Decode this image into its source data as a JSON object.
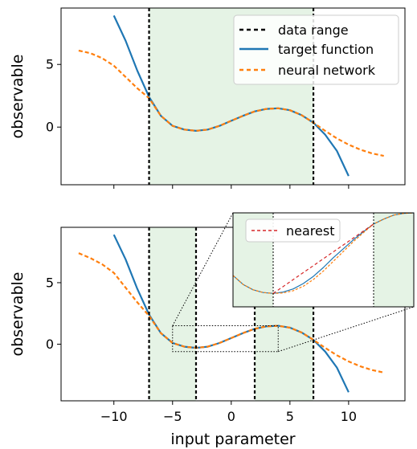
{
  "chart_data": [
    {
      "type": "line",
      "xlabel": "",
      "ylabel": "observable",
      "xlim": [
        -14.5,
        14.8
      ],
      "ylim": [
        -4.6,
        9.5
      ],
      "yticks": [
        0,
        5
      ],
      "shaded_x": [
        [
          -7,
          7
        ]
      ],
      "vlines_x": [
        -7,
        7
      ],
      "legend_position": "upper right",
      "legend": [
        {
          "label": "data range",
          "style": "dashed",
          "color": "#000000"
        },
        {
          "label": "target function",
          "style": "solid",
          "color": "#1f77b4"
        },
        {
          "label": "neural network",
          "style": "dashed",
          "color": "#ff7f0e"
        }
      ],
      "series": [
        {
          "name": "target function",
          "color": "#1f77b4",
          "x": [
            -10,
            -9,
            -8,
            -7,
            -6,
            -5,
            -4,
            -3,
            -2,
            -1,
            0,
            1,
            2,
            3,
            4,
            5,
            6,
            7,
            8,
            9,
            10
          ],
          "y": [
            8.9,
            6.9,
            4.5,
            2.4,
            0.9,
            0.1,
            -0.2,
            -0.3,
            -0.2,
            0.1,
            0.5,
            0.9,
            1.25,
            1.45,
            1.5,
            1.35,
            0.95,
            0.35,
            -0.6,
            -1.9,
            -3.9
          ]
        },
        {
          "name": "neural network",
          "color": "#ff7f0e",
          "x": [
            -13,
            -12,
            -11,
            -10,
            -9,
            -8,
            -7,
            -6,
            -5,
            -4,
            -3,
            -2,
            -1,
            0,
            1,
            2,
            3,
            4,
            5,
            6,
            7,
            8,
            9,
            10,
            11,
            12,
            13
          ],
          "y": [
            6.1,
            5.9,
            5.5,
            4.9,
            4.0,
            3.1,
            2.3,
            0.9,
            0.1,
            -0.2,
            -0.3,
            -0.2,
            0.1,
            0.5,
            0.9,
            1.25,
            1.45,
            1.5,
            1.35,
            0.95,
            0.35,
            -0.3,
            -0.9,
            -1.4,
            -1.8,
            -2.1,
            -2.3
          ]
        }
      ]
    },
    {
      "type": "line",
      "xlabel": "input parameter",
      "ylabel": "observable",
      "xlim": [
        -14.5,
        14.8
      ],
      "ylim": [
        -4.6,
        9.5
      ],
      "xticks": [
        -10,
        -5,
        0,
        5,
        10
      ],
      "yticks": [
        0,
        5
      ],
      "shaded_x": [
        [
          -7,
          -3
        ],
        [
          2,
          7
        ]
      ],
      "vlines_x": [
        -7,
        -3,
        2,
        7
      ],
      "zoom_box": {
        "x": [
          -5,
          4
        ],
        "y": [
          -0.6,
          1.5
        ]
      },
      "series": [
        {
          "name": "target function",
          "color": "#1f77b4",
          "x": [
            -10,
            -9,
            -8,
            -7,
            -6,
            -5,
            -4,
            -3,
            -2,
            -1,
            0,
            1,
            2,
            3,
            4,
            5,
            6,
            7,
            8,
            9,
            10
          ],
          "y": [
            8.9,
            6.9,
            4.5,
            2.4,
            0.9,
            0.1,
            -0.2,
            -0.3,
            -0.2,
            0.1,
            0.5,
            0.9,
            1.25,
            1.45,
            1.5,
            1.35,
            0.95,
            0.35,
            -0.6,
            -1.9,
            -3.9
          ]
        },
        {
          "name": "neural network",
          "color": "#ff7f0e",
          "x": [
            -13,
            -12,
            -11,
            -10,
            -9,
            -8,
            -7,
            -6,
            -5,
            -4,
            -3,
            -2,
            -1,
            0,
            1,
            2,
            3,
            4,
            5,
            6,
            7,
            8,
            9,
            10,
            11,
            12,
            13
          ],
          "y": [
            7.4,
            7.0,
            6.5,
            5.8,
            4.6,
            3.4,
            2.3,
            0.9,
            0.1,
            -0.2,
            -0.3,
            -0.2,
            0.1,
            0.5,
            0.9,
            1.25,
            1.45,
            1.5,
            1.35,
            0.95,
            0.35,
            -0.3,
            -0.9,
            -1.4,
            -1.8,
            -2.1,
            -2.3
          ]
        }
      ]
    },
    {
      "type": "line",
      "inset": true,
      "xlim": [
        -5,
        4
      ],
      "ylim": [
        -0.6,
        1.5
      ],
      "shaded_x": [
        [
          -5,
          -3
        ],
        [
          2,
          4
        ]
      ],
      "vlines_x": [
        -3,
        2
      ],
      "legend": [
        {
          "label": "nearest",
          "style": "dashed",
          "color": "#d62728"
        }
      ],
      "series": [
        {
          "name": "target function",
          "color": "#1f77b4",
          "x": [
            -5,
            -4.5,
            -4,
            -3.5,
            -3,
            -2.5,
            -2,
            -1.5,
            -1,
            -0.5,
            0,
            0.5,
            1,
            1.5,
            2,
            2.5,
            3,
            3.5,
            4
          ],
          "y": [
            0.1,
            -0.1,
            -0.22,
            -0.28,
            -0.3,
            -0.27,
            -0.2,
            -0.08,
            0.08,
            0.28,
            0.5,
            0.7,
            0.9,
            1.08,
            1.25,
            1.36,
            1.45,
            1.49,
            1.5
          ]
        },
        {
          "name": "neural network",
          "color": "#ff7f0e",
          "x": [
            -5,
            -4.5,
            -4,
            -3.5,
            -3,
            -2.5,
            -2,
            -1.5,
            -1,
            -0.5,
            0,
            0.5,
            1,
            1.5,
            2,
            2.5,
            3,
            3.5,
            4
          ],
          "y": [
            0.1,
            -0.1,
            -0.22,
            -0.28,
            -0.3,
            -0.29,
            -0.24,
            -0.14,
            0.01,
            0.2,
            0.42,
            0.64,
            0.86,
            1.06,
            1.25,
            1.36,
            1.45,
            1.49,
            1.5
          ]
        },
        {
          "name": "nearest",
          "color": "#d62728",
          "x": [
            -3,
            2
          ],
          "y": [
            -0.3,
            1.25
          ]
        }
      ]
    }
  ]
}
